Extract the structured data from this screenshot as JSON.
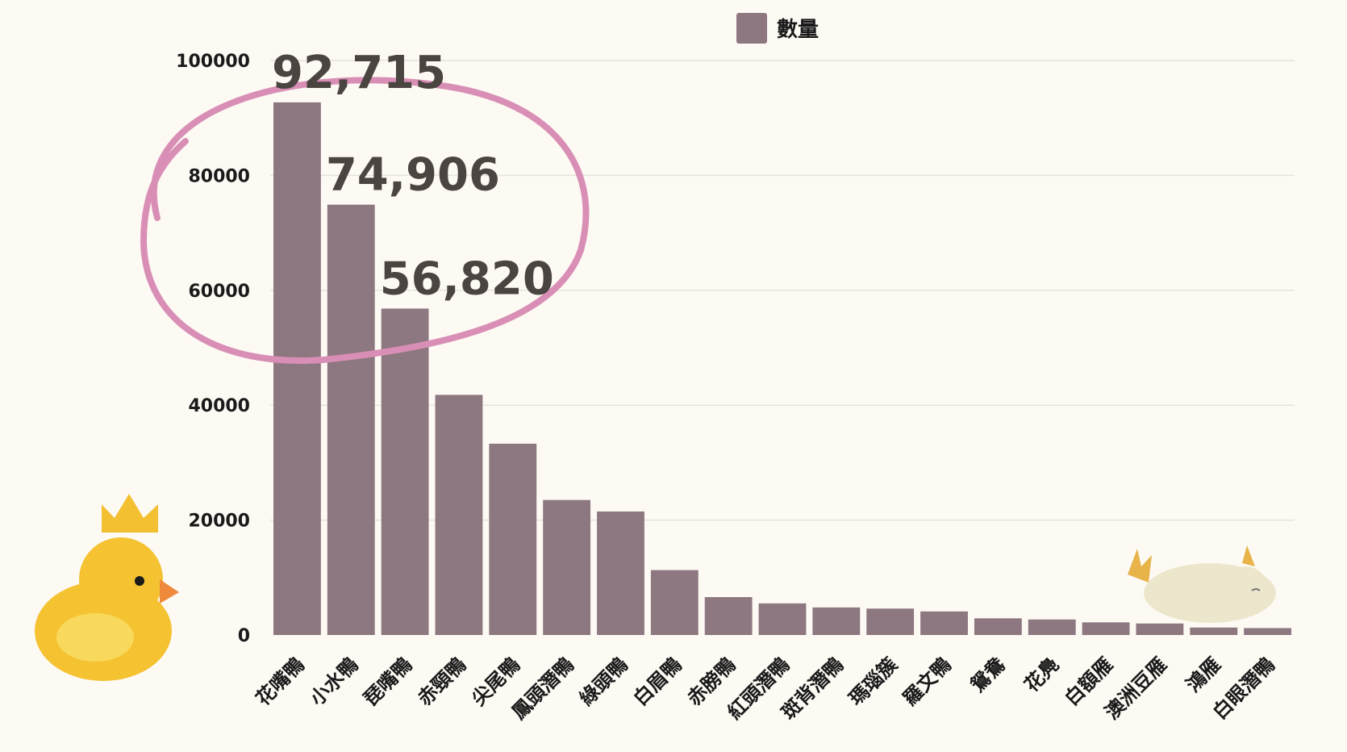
{
  "colors": {
    "background": "#fdfaf4",
    "bar": "#8d7780",
    "grid": "#e6e3de",
    "annotation_circle": "#d98fb5",
    "annotation_text": "#4a4540"
  },
  "chart_data": {
    "type": "bar",
    "categories": [
      "花嘴鴨",
      "小水鴨",
      "琵嘴鴨",
      "赤頸鴨",
      "尖尾鴨",
      "鳳頭潛鴨",
      "綠頭鴨",
      "白眉鴨",
      "赤膀鴨",
      "紅頭潛鴨",
      "斑背潛鴨",
      "瑪瑙簇",
      "羅文鴨",
      "鴛鴦",
      "花鳧",
      "白額雁",
      "澳洲豆雁",
      "鴻雁",
      "白眼潛鴨"
    ],
    "series": [
      {
        "name": "數量",
        "values": [
          92715,
          74906,
          56820,
          41800,
          33300,
          23500,
          21500,
          11300,
          6600,
          5500,
          4800,
          4600,
          4100,
          2900,
          2700,
          2200,
          2000,
          1300,
          1200
        ]
      }
    ],
    "ylim": [
      0,
      100000
    ],
    "yticks": [
      0,
      20000,
      40000,
      60000,
      80000,
      100000
    ],
    "grid": true,
    "legend_position": "top-center",
    "annotations": [
      "92,715",
      "74,906",
      "56,820"
    ]
  },
  "decorations": [
    "crowned-rubber-duck",
    "sleeping-duck"
  ]
}
